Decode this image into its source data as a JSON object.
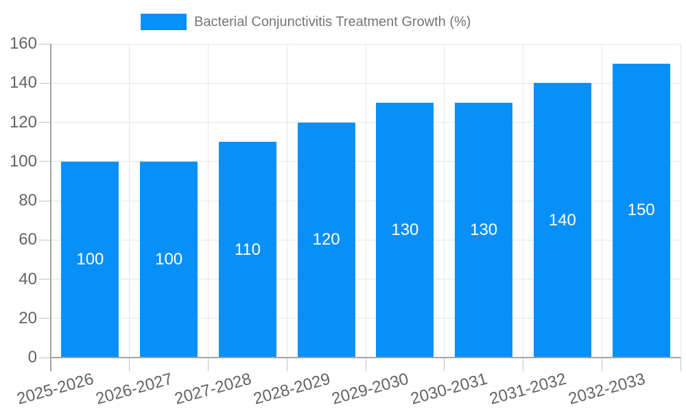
{
  "chart_data": {
    "type": "bar",
    "title": "Bacterial Conjunctivitis Treatment Growth (%)",
    "categories": [
      "2025-2026",
      "2026-2027",
      "2027-2028",
      "2028-2029",
      "2029-2030",
      "2030-2031",
      "2031-2032",
      "2032-2033"
    ],
    "values": [
      100,
      100,
      110,
      120,
      130,
      130,
      140,
      150
    ],
    "bar_value_labels": [
      "100",
      "100",
      "110",
      "120",
      "130",
      "130",
      "140",
      "150"
    ],
    "yticks": [
      0,
      20,
      40,
      60,
      80,
      100,
      120,
      140,
      160
    ],
    "ylim": [
      0,
      160
    ],
    "grid": true,
    "legend_position": "top",
    "colors": {
      "bar": "#0990F8",
      "grid": "#e6e6e6",
      "axis_line": "#a3a3a3",
      "tick": "#c2c2c2",
      "axis_text": "#636363",
      "title_text": "#757575",
      "value_label": "#ffffff",
      "background": "#ffffff"
    }
  }
}
